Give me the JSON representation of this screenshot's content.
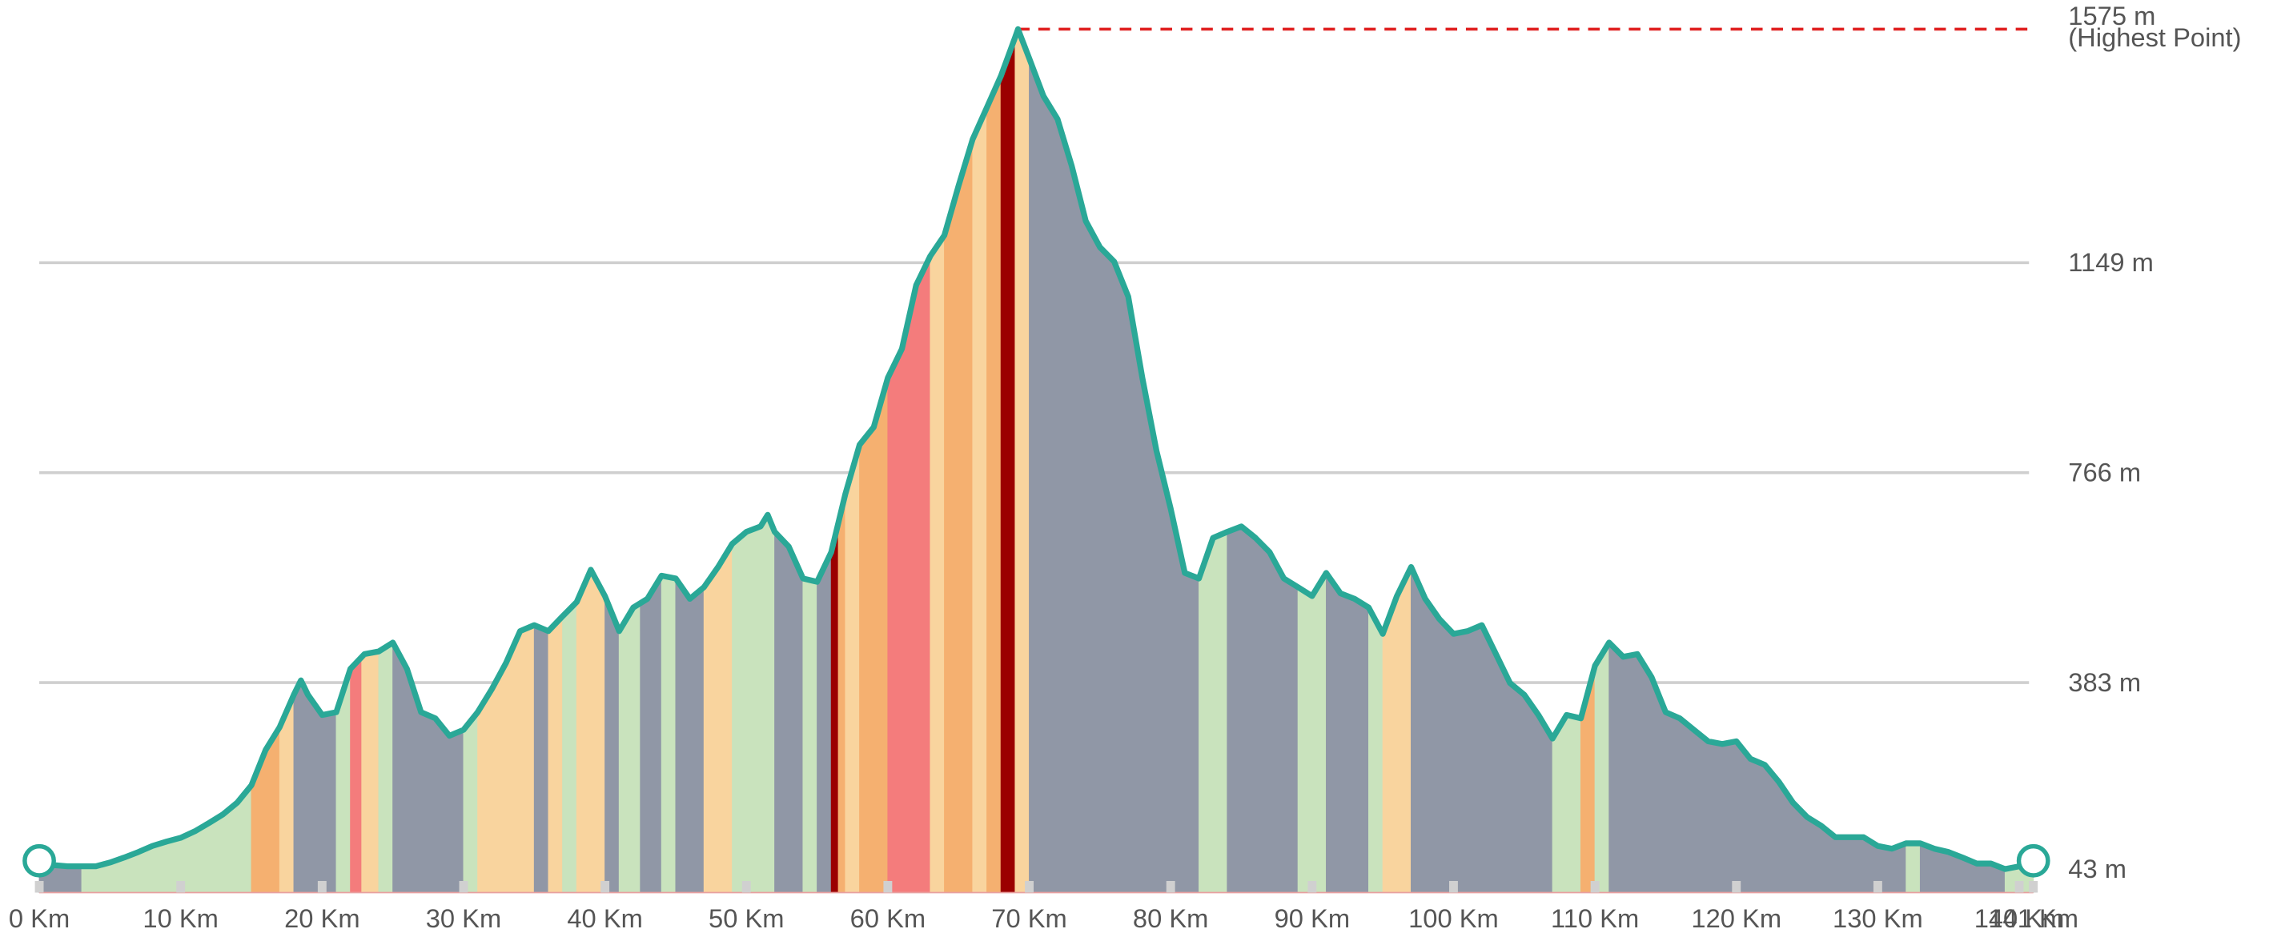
{
  "chart_data": {
    "type": "elevation-profile",
    "line_color": "#2aa897",
    "highlight_color": "#e02020",
    "grid": true,
    "x": [
      0,
      1,
      2,
      3,
      4,
      5,
      6,
      7,
      8,
      9,
      10,
      11,
      12,
      13,
      14,
      15,
      16,
      17,
      18,
      18.5,
      19,
      20,
      21,
      22,
      23,
      24,
      25,
      26,
      27,
      28,
      29,
      30,
      31,
      32,
      33,
      34,
      35,
      36,
      37,
      38,
      39,
      40,
      41,
      42,
      43,
      44,
      45,
      46,
      47,
      48,
      49,
      50,
      51,
      51.5,
      52,
      53,
      54,
      55,
      56,
      57,
      58,
      59,
      60,
      61,
      62,
      63,
      64,
      65,
      66,
      67,
      68,
      69,
      69.2,
      70,
      71,
      72,
      73,
      74,
      75,
      76,
      77,
      78,
      79,
      80,
      81,
      82,
      83,
      84,
      85,
      86,
      87,
      88,
      89,
      90,
      91,
      92,
      93,
      94,
      95,
      96,
      97,
      98,
      99,
      100,
      101,
      102,
      103,
      104,
      105,
      106,
      107,
      108,
      109,
      110,
      111,
      112,
      113,
      114,
      115,
      116,
      117,
      118,
      119,
      120,
      121,
      122,
      123,
      124,
      125,
      126,
      127,
      128,
      129,
      130,
      131,
      132,
      133,
      134,
      135,
      136,
      137,
      138,
      139,
      140,
      141
    ],
    "values": [
      58,
      50,
      48,
      48,
      48,
      55,
      64,
      74,
      85,
      93,
      100,
      112,
      127,
      143,
      164,
      196,
      260,
      302,
      361,
      387,
      361,
      324,
      329,
      408,
      435,
      440,
      456,
      408,
      329,
      318,
      286,
      297,
      329,
      371,
      419,
      477,
      488,
      477,
      504,
      530,
      589,
      541,
      477,
      520,
      536,
      578,
      573,
      536,
      557,
      594,
      636,
      658,
      668,
      689,
      658,
      631,
      573,
      567,
      621,
      727,
      817,
      849,
      939,
      992,
      1108,
      1161,
      1199,
      1289,
      1374,
      1432,
      1490,
      1560,
      1575,
      1522,
      1453,
      1411,
      1326,
      1225,
      1177,
      1151,
      1087,
      939,
      806,
      700,
      583,
      573,
      647,
      658,
      668,
      647,
      621,
      573,
      557,
      541,
      583,
      546,
      536,
      520,
      472,
      541,
      594,
      536,
      499,
      472,
      477,
      488,
      435,
      382,
      361,
      324,
      281,
      324,
      318,
      414,
      456,
      430,
      435,
      393,
      329,
      318,
      297,
      276,
      271,
      276,
      244,
      233,
      202,
      164,
      138,
      122,
      101,
      101,
      101,
      85,
      80,
      90,
      90,
      80,
      74,
      64,
      53,
      53,
      43,
      48,
      58
    ],
    "segments": [
      {
        "from": 0,
        "to": 3,
        "color": "#9097a6"
      },
      {
        "from": 3,
        "to": 15,
        "color": "#c9e3bd"
      },
      {
        "from": 15,
        "to": 17,
        "color": "#f5b070"
      },
      {
        "from": 17,
        "to": 18,
        "color": "#f9d49e"
      },
      {
        "from": 18,
        "to": 21,
        "color": "#9097a6"
      },
      {
        "from": 21,
        "to": 22,
        "color": "#c9e3bd"
      },
      {
        "from": 22,
        "to": 22.8,
        "color": "#f47c7c"
      },
      {
        "from": 22.8,
        "to": 24,
        "color": "#f9d49e"
      },
      {
        "from": 24,
        "to": 25,
        "color": "#c9e3bd"
      },
      {
        "from": 25,
        "to": 30,
        "color": "#9097a6"
      },
      {
        "from": 30,
        "to": 31,
        "color": "#c9e3bd"
      },
      {
        "from": 31,
        "to": 35,
        "color": "#f9d49e"
      },
      {
        "from": 35,
        "to": 36,
        "color": "#9097a6"
      },
      {
        "from": 36,
        "to": 37,
        "color": "#f9d49e"
      },
      {
        "from": 37,
        "to": 38,
        "color": "#c9e3bd"
      },
      {
        "from": 38,
        "to": 40,
        "color": "#f9d49e"
      },
      {
        "from": 40,
        "to": 41,
        "color": "#9097a6"
      },
      {
        "from": 41,
        "to": 42.5,
        "color": "#c9e3bd"
      },
      {
        "from": 42.5,
        "to": 44,
        "color": "#9097a6"
      },
      {
        "from": 44,
        "to": 45,
        "color": "#c9e3bd"
      },
      {
        "from": 45,
        "to": 47,
        "color": "#9097a6"
      },
      {
        "from": 47,
        "to": 49,
        "color": "#f9d49e"
      },
      {
        "from": 49,
        "to": 52,
        "color": "#c9e3bd"
      },
      {
        "from": 52,
        "to": 54,
        "color": "#9097a6"
      },
      {
        "from": 54,
        "to": 55,
        "color": "#c9e3bd"
      },
      {
        "from": 55,
        "to": 56,
        "color": "#9097a6"
      },
      {
        "from": 56,
        "to": 56.5,
        "color": "#9b0000"
      },
      {
        "from": 56.5,
        "to": 57,
        "color": "#f5b070"
      },
      {
        "from": 57,
        "to": 58,
        "color": "#f9d49e"
      },
      {
        "from": 58,
        "to": 60,
        "color": "#f5b070"
      },
      {
        "from": 60,
        "to": 63,
        "color": "#f47c7c"
      },
      {
        "from": 63,
        "to": 64,
        "color": "#f9d49e"
      },
      {
        "from": 64,
        "to": 66,
        "color": "#f5b070"
      },
      {
        "from": 66,
        "to": 67,
        "color": "#f9d49e"
      },
      {
        "from": 67,
        "to": 68,
        "color": "#f5b070"
      },
      {
        "from": 68,
        "to": 69,
        "color": "#9b0000"
      },
      {
        "from": 69,
        "to": 70,
        "color": "#f9d49e"
      },
      {
        "from": 70,
        "to": 82,
        "color": "#9097a6"
      },
      {
        "from": 82,
        "to": 84,
        "color": "#c9e3bd"
      },
      {
        "from": 84,
        "to": 89,
        "color": "#9097a6"
      },
      {
        "from": 89,
        "to": 91,
        "color": "#c9e3bd"
      },
      {
        "from": 91,
        "to": 94,
        "color": "#9097a6"
      },
      {
        "from": 94,
        "to": 95,
        "color": "#c9e3bd"
      },
      {
        "from": 95,
        "to": 97,
        "color": "#f9d49e"
      },
      {
        "from": 97,
        "to": 107,
        "color": "#9097a6"
      },
      {
        "from": 107,
        "to": 109,
        "color": "#c9e3bd"
      },
      {
        "from": 109,
        "to": 110,
        "color": "#f5b070"
      },
      {
        "from": 110,
        "to": 111,
        "color": "#c9e3bd"
      },
      {
        "from": 111,
        "to": 132,
        "color": "#9097a6"
      },
      {
        "from": 132,
        "to": 133,
        "color": "#c9e3bd"
      },
      {
        "from": 133,
        "to": 139,
        "color": "#9097a6"
      },
      {
        "from": 139,
        "to": 141,
        "color": "#c9e3bd"
      }
    ],
    "xlim": [
      0,
      141
    ],
    "ylim": [
      0,
      1575
    ],
    "xticks": [
      {
        "value": 0,
        "label": "0 Km"
      },
      {
        "value": 10,
        "label": "10 Km"
      },
      {
        "value": 20,
        "label": "20 Km"
      },
      {
        "value": 30,
        "label": "30 Km"
      },
      {
        "value": 40,
        "label": "40 Km"
      },
      {
        "value": 50,
        "label": "50 Km"
      },
      {
        "value": 60,
        "label": "60 Km"
      },
      {
        "value": 70,
        "label": "70 Km"
      },
      {
        "value": 80,
        "label": "80 Km"
      },
      {
        "value": 90,
        "label": "90 Km"
      },
      {
        "value": 100,
        "label": "100 Km"
      },
      {
        "value": 110,
        "label": "110 Km"
      },
      {
        "value": 120,
        "label": "120 Km"
      },
      {
        "value": 130,
        "label": "130 Km"
      },
      {
        "value": 140,
        "label": "140 Km"
      },
      {
        "value": 141,
        "label": "141 Km"
      }
    ],
    "yticks": [
      {
        "value": 43,
        "label": "43 m"
      },
      {
        "value": 383,
        "label": "383 m"
      },
      {
        "value": 766,
        "label": "766 m"
      },
      {
        "value": 1149,
        "label": "1149 m"
      },
      {
        "value": 1575,
        "label": "1575 m"
      }
    ],
    "peak_annotation": "(Highest Point)"
  }
}
